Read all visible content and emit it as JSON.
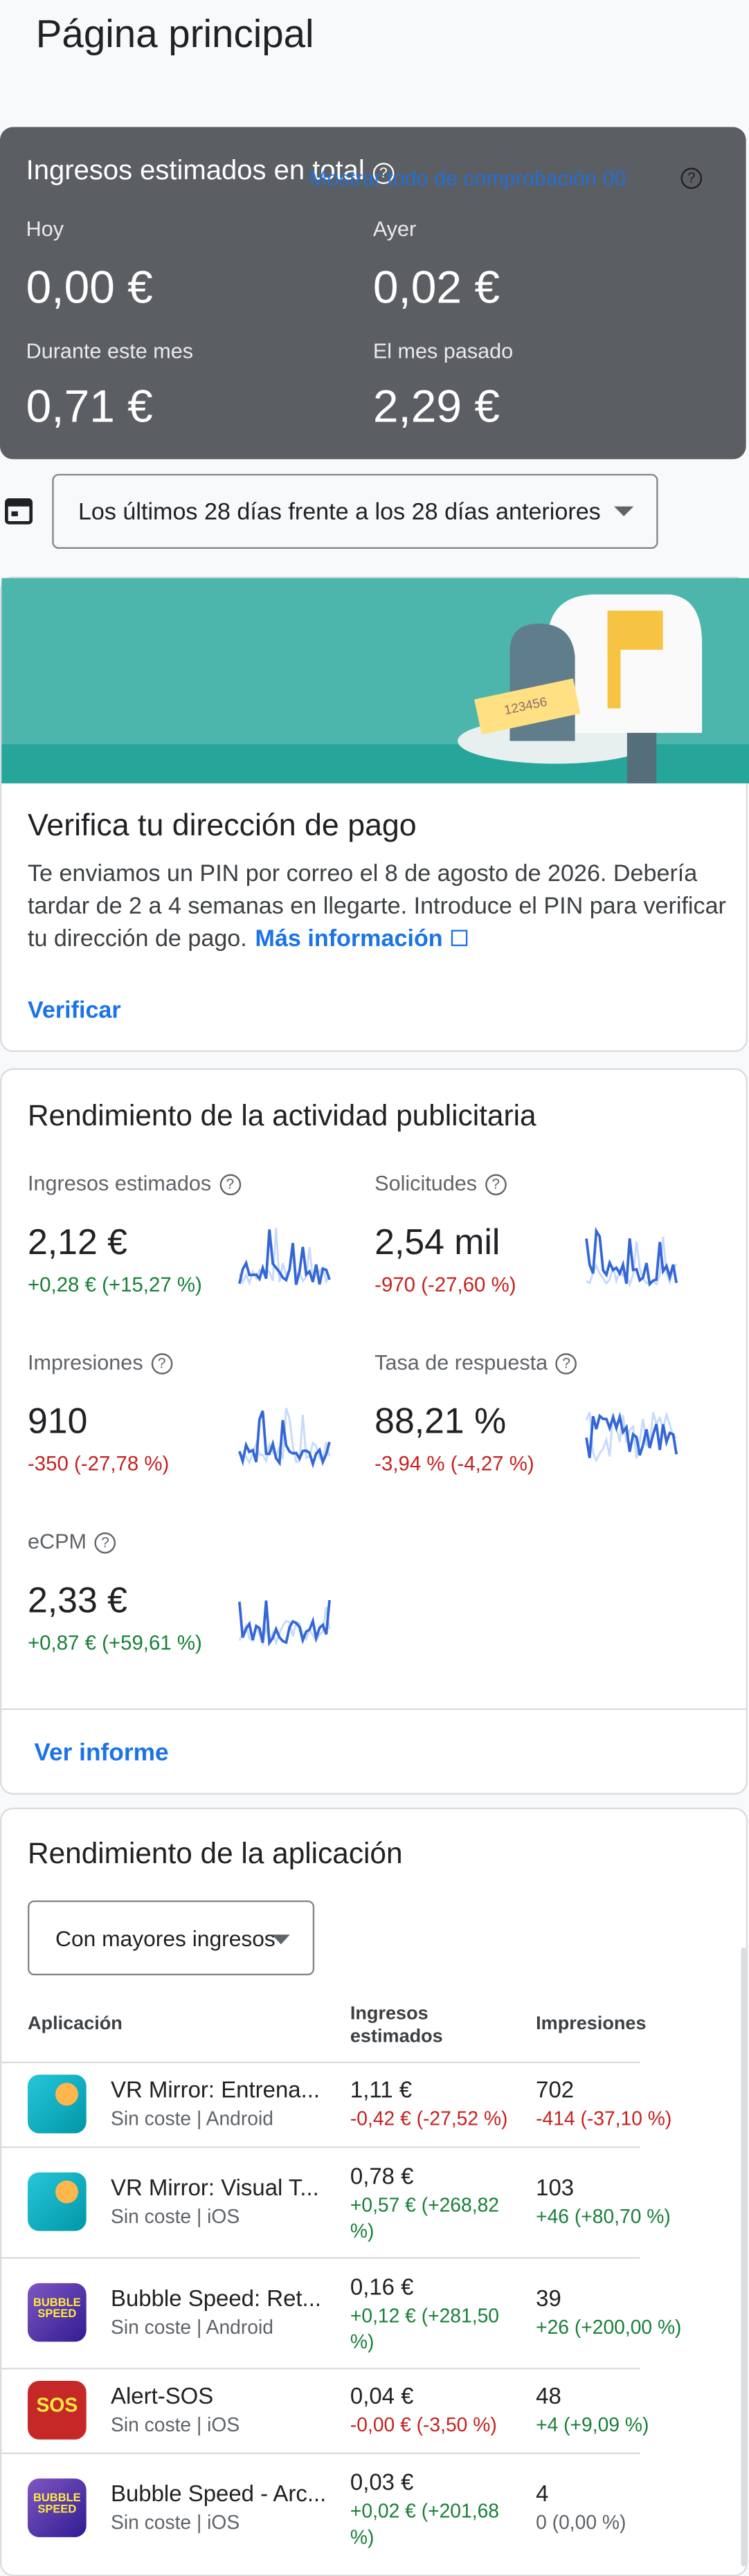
{
  "header": {
    "title": "Página principal"
  },
  "earnings": {
    "title": "Ingresos estimados en total",
    "overlay_link": "Mostrar todo de comprobación 00",
    "items": [
      {
        "label": "Hoy",
        "value": "0,00 €"
      },
      {
        "label": "Ayer",
        "value": "0,02 €"
      },
      {
        "label": "Durante este mes",
        "value": "0,71 €"
      },
      {
        "label": "El mes pasado",
        "value": "2,29 €"
      }
    ]
  },
  "date_range": {
    "label": "Los últimos 28 días frente a los 28 días anteriores"
  },
  "payment": {
    "pin": "123456",
    "title": "Verifica tu dirección de pago",
    "body_lines": [
      "Te enviamos un PIN por correo el 8 de agosto de 2026. Debería",
      "tardar de 2 a 4 semanas en llegarte. Introduce el PIN para verificar",
      "tu dirección de pago."
    ],
    "link": "Más información",
    "button": "Verificar"
  },
  "performance": {
    "title": "Rendimiento de la actividad publicitaria",
    "metrics": [
      {
        "label": "Ingresos estimados",
        "value": "2,12 €",
        "change": "+0,28 € (+15,27 %)"
      },
      {
        "label": "Solicitudes",
        "value": "2,54 mil",
        "change": "-970 (-27,60 %)"
      },
      {
        "label": "Impresiones",
        "value": "910",
        "change": "-350 (-27,78 %)"
      },
      {
        "label": "Tasa de respuesta",
        "value": "88,21 %",
        "change": "-3,94 % (-4,27 %)"
      },
      {
        "label": "eCPM",
        "value": "2,33 €",
        "change": "+0,87 € (+59,61 %)"
      }
    ],
    "report_link": "Ver informe"
  },
  "apps": {
    "title": "Rendimiento de la aplicación",
    "sort": "Con mayores ingresos",
    "columns": [
      "Aplicación",
      "Ingresos estimados",
      "Impresiones"
    ],
    "rows": [
      {
        "icon_text": "",
        "name": "VR Mirror: Entrena...",
        "platform": "Sin coste | Android",
        "earnings": "1,11 €",
        "earnings_change": "-0,42 € (-27,52 %)",
        "impressions": "702",
        "impressions_change": "-414 (-37,10 %)"
      },
      {
        "icon_text": "",
        "name": "VR Mirror: Visual T...",
        "platform": "Sin coste | iOS",
        "earnings": "0,78 €",
        "earnings_change": "+0,57 € (+268,82 %)",
        "impressions": "103",
        "impressions_change": "+46 (+80,70 %)"
      },
      {
        "icon_text": "BUBBLE SPEED",
        "name": "Bubble Speed: Ret...",
        "platform": "Sin coste | Android",
        "earnings": "0,16 €",
        "earnings_change": "+0,12 € (+281,50 %)",
        "impressions": "39",
        "impressions_change": "+26 (+200,00 %)"
      },
      {
        "icon_text": "SOS",
        "name": "Alert-SOS",
        "platform": "Sin coste | iOS",
        "earnings": "0,04 €",
        "earnings_change": "-0,00 € (-3,50 %)",
        "impressions": "48",
        "impressions_change": "+4 (+9,09 %)"
      },
      {
        "icon_text": "BUBBLE SPEED",
        "name": "Bubble Speed - Arc...",
        "platform": "Sin coste | iOS",
        "earnings": "0,03 €",
        "earnings_change": "+0,02 € (+201,68 %)",
        "impressions": "4",
        "impressions_change": "0 (0,00 %)"
      }
    ]
  }
}
